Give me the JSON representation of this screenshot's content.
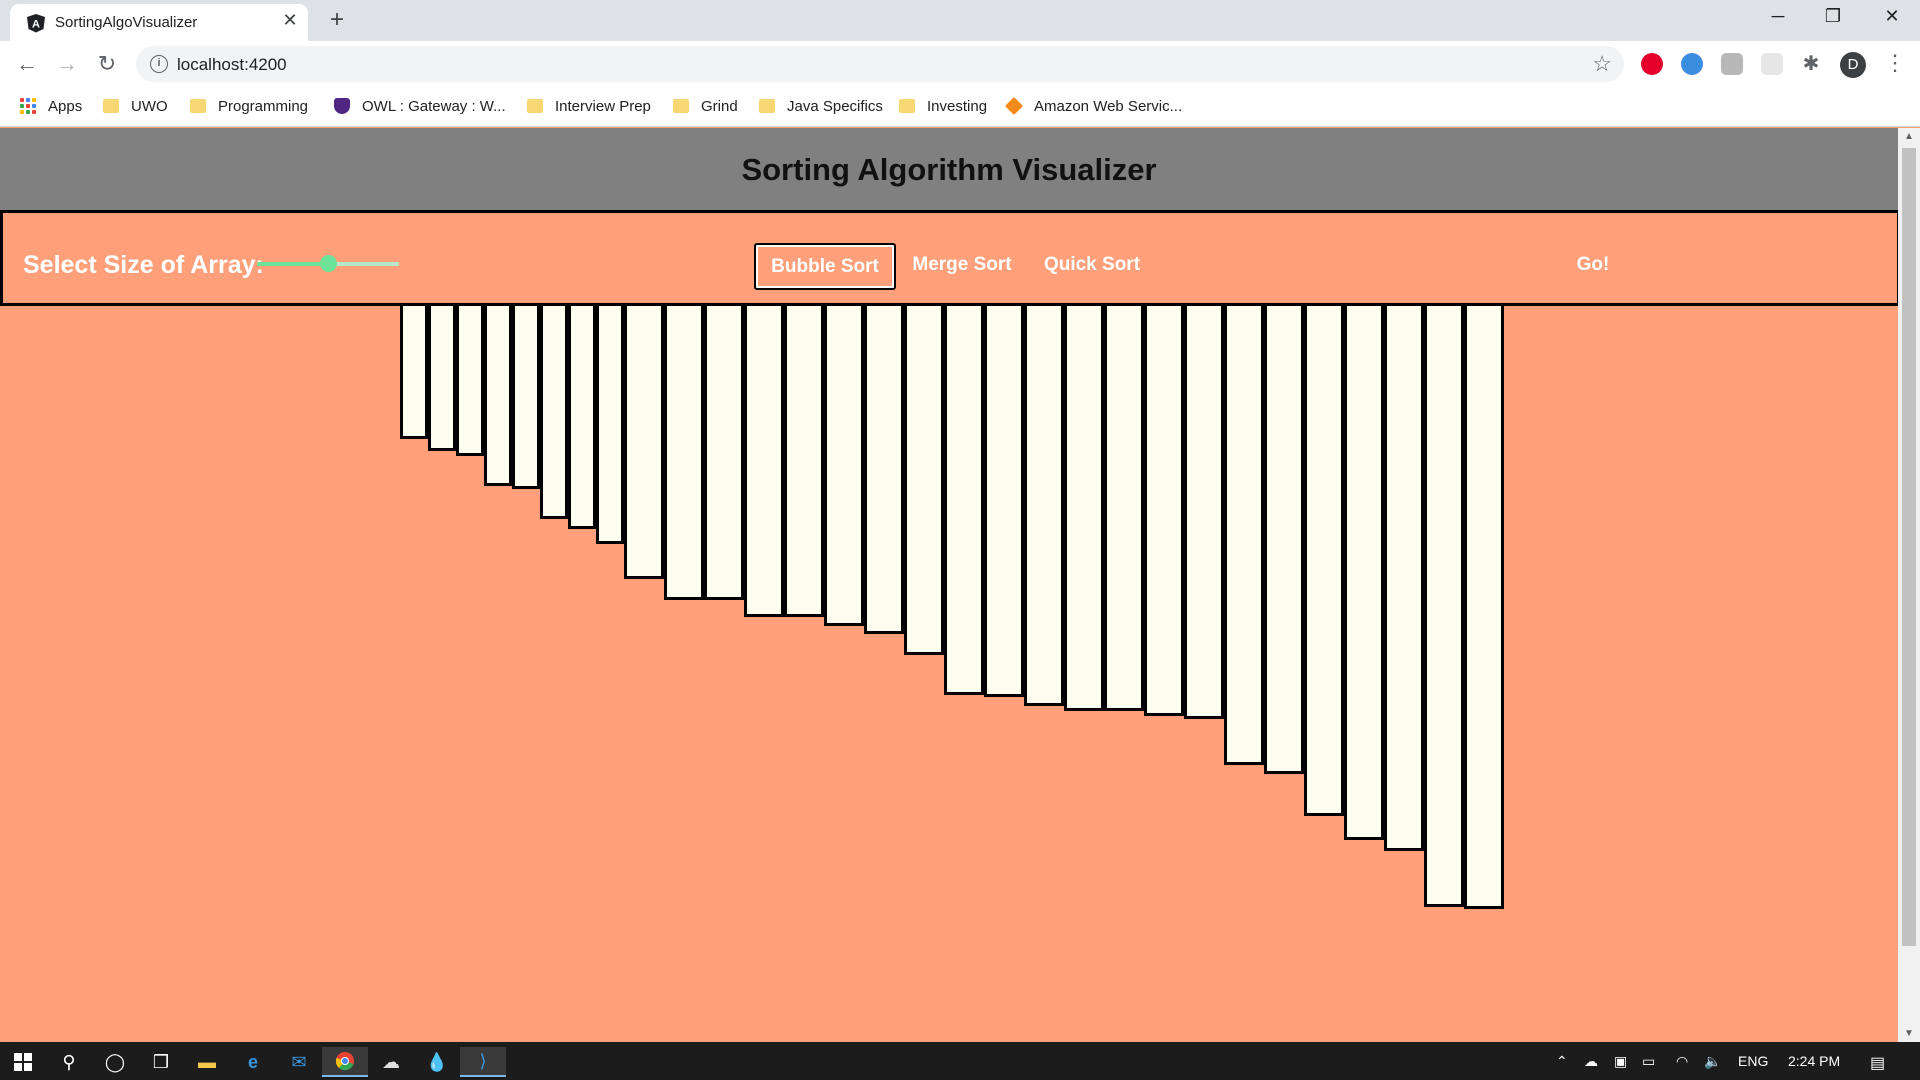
{
  "browser": {
    "tab_title": "SortingAlgoVisualizer",
    "tab_close": "✕",
    "new_tab": "+",
    "url": "localhost:4200",
    "profile_initial": "D",
    "bookmarks": [
      {
        "label": "Apps",
        "icon": "apps-grid-icon"
      },
      {
        "label": "UWO",
        "icon": "folder-icon"
      },
      {
        "label": "Programming",
        "icon": "folder-icon"
      },
      {
        "label": "OWL : Gateway : W...",
        "icon": "owl-shield-icon"
      },
      {
        "label": "Interview Prep",
        "icon": "folder-icon"
      },
      {
        "label": "Grind",
        "icon": "folder-icon"
      },
      {
        "label": "Java Specifics",
        "icon": "folder-icon"
      },
      {
        "label": "Investing",
        "icon": "folder-icon"
      },
      {
        "label": "Amazon Web Servic...",
        "icon": "aws-cube-icon"
      }
    ]
  },
  "app": {
    "title": "Sorting Algorithm Visualizer",
    "size_label": "Select Size of Array:",
    "size_slider": {
      "fraction": 0.5
    },
    "algorithms": [
      "Bubble Sort",
      "Merge Sort",
      "Quick Sort"
    ],
    "selected_algorithm": "Bubble Sort",
    "go_label": "Go!",
    "array_values": [
      133,
      145,
      150,
      180,
      183,
      213,
      223,
      238,
      273,
      294,
      294,
      311,
      311,
      320,
      328,
      349,
      389,
      391,
      400,
      405,
      405,
      410,
      413,
      459,
      468,
      510,
      534,
      545,
      601,
      603
    ]
  },
  "taskbar": {
    "language": "ENG",
    "time": "2:24 PM"
  },
  "colors": {
    "page_background": "#ffa07a",
    "header_background": "#808080",
    "bar_fill": "#fdfdef",
    "slider_accent": "#6de39a"
  }
}
